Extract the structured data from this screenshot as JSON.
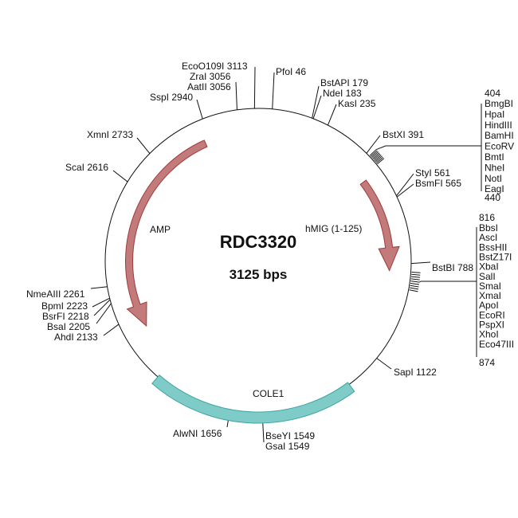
{
  "plasmid": {
    "name": "RDC3320",
    "size_label": "3125 bps",
    "length": 3125
  },
  "colors": {
    "backbone": "#111111",
    "amp_fill": "#c27a7a",
    "amp_stroke": "#a23a3a",
    "ori_fill": "#7ecbc8",
    "ori_stroke": "#3fa5a1"
  },
  "features": [
    {
      "name": "AMP",
      "type": "arrow",
      "direction": "counterclockwise"
    },
    {
      "name": "hMIG (1-125)",
      "type": "arrow",
      "direction": "clockwise"
    },
    {
      "name": "COLE1",
      "type": "origin-band"
    }
  ],
  "sites": [
    {
      "label": "EcoO109I 3113",
      "pos": 3113
    },
    {
      "label": "PfoI 46",
      "pos": 46
    },
    {
      "label": "ZraI 3056",
      "pos": 3056
    },
    {
      "label": "AatII 3056",
      "pos": 3056
    },
    {
      "label": "SspI 2940",
      "pos": 2940
    },
    {
      "label": "BstAPI 179",
      "pos": 179
    },
    {
      "label": "NdeI 183",
      "pos": 183
    },
    {
      "label": "KasI 235",
      "pos": 235
    },
    {
      "label": "BstXI 391",
      "pos": 391
    },
    {
      "label": "StyI 561",
      "pos": 561
    },
    {
      "label": "BsmFI 565",
      "pos": 565
    },
    {
      "label": "BstBI 788",
      "pos": 788
    },
    {
      "label": "SapI 1122",
      "pos": 1122
    },
    {
      "label": "AlwNI 1656",
      "pos": 1656
    },
    {
      "label": "BseYI 1549",
      "pos": 1549
    },
    {
      "label": "GsaI 1549",
      "pos": 1549
    },
    {
      "label": "AhdI 2133",
      "pos": 2133
    },
    {
      "label": "BsaI 2205",
      "pos": 2205
    },
    {
      "label": "BsrFI 2218",
      "pos": 2218
    },
    {
      "label": "BpmI 2223",
      "pos": 2223
    },
    {
      "label": "NmeAIII 2261",
      "pos": 2261
    },
    {
      "label": "ScaI 2616",
      "pos": 2616
    },
    {
      "label": "XmnI 2733",
      "pos": 2733
    }
  ],
  "mcs1": {
    "start": "404",
    "end": "440",
    "enzymes": [
      "BmgBI",
      "HpaI",
      "HindIII",
      "BamHI",
      "EcoRV",
      "BmtI",
      "NheI",
      "NotI",
      "EagI"
    ]
  },
  "mcs2": {
    "start": "816",
    "end": "874",
    "enzymes": [
      "BbsI",
      "AscI",
      "BssHII",
      "BstZ17I",
      "XbaI",
      "SalI",
      "SmaI",
      "XmaI",
      "ApoI",
      "EcoRI",
      "PspXI",
      "XhoI",
      "Eco47III"
    ]
  }
}
